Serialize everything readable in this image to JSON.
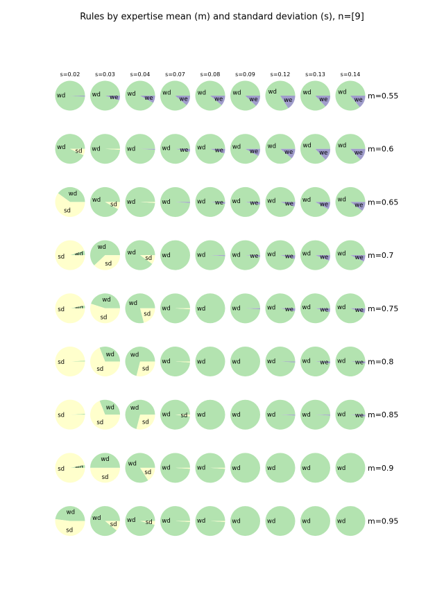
{
  "chart_data": {
    "type": "pie",
    "title": "Rules by expertise mean (m) and standard deviation (s), n=[9]",
    "column_labels": [
      "s=0.02",
      "s=0.03",
      "s=0.04",
      "s=0.07",
      "s=0.08",
      "s=0.09",
      "s=0.12",
      "s=0.13",
      "s=0.14"
    ],
    "row_labels": [
      "m=0.55",
      "m=0.6",
      "m=0.65",
      "m=0.7",
      "m=0.75",
      "m=0.8",
      "m=0.85",
      "m=0.9",
      "m=0.95"
    ],
    "categories": [
      "wd",
      "we",
      "sd"
    ],
    "colors": {
      "wd": "#b3e3b0",
      "we": "#a09dcc",
      "sd": "#ffffcc"
    },
    "grid": [
      [
        {
          "wd": 0.99,
          "we": 0.01,
          "sd": 0
        },
        {
          "wd": 0.95,
          "we": 0.05,
          "sd": 0
        },
        {
          "wd": 0.92,
          "we": 0.08,
          "sd": 0
        },
        {
          "wd": 0.89,
          "we": 0.11,
          "sd": 0
        },
        {
          "wd": 0.89,
          "we": 0.11,
          "sd": 0
        },
        {
          "wd": 0.88,
          "we": 0.12,
          "sd": 0
        },
        {
          "wd": 0.84,
          "we": 0.16,
          "sd": 0
        },
        {
          "wd": 0.87,
          "we": 0.13,
          "sd": 0
        },
        {
          "wd": 0.86,
          "we": 0.14,
          "sd": 0
        }
      ],
      [
        {
          "wd": 0.93,
          "we": 0,
          "sd": 0.07
        },
        {
          "wd": 0.99,
          "we": 0,
          "sd": 0.01
        },
        {
          "wd": 0.99,
          "we": 0.01,
          "sd": 0
        },
        {
          "wd": 0.97,
          "we": 0.03,
          "sd": 0
        },
        {
          "wd": 0.95,
          "we": 0.05,
          "sd": 0
        },
        {
          "wd": 0.92,
          "we": 0.08,
          "sd": 0
        },
        {
          "wd": 0.89,
          "we": 0.11,
          "sd": 0
        },
        {
          "wd": 0.87,
          "we": 0.13,
          "sd": 0
        },
        {
          "wd": 0.87,
          "we": 0.13,
          "sd": 0
        }
      ],
      [
        {
          "wd": 0.4,
          "we": 0,
          "sd": 0.6
        },
        {
          "wd": 0.92,
          "we": 0,
          "sd": 0.08
        },
        {
          "wd": 0.99,
          "we": 0,
          "sd": 0.01
        },
        {
          "wd": 0.99,
          "we": 0.01,
          "sd": 0
        },
        {
          "wd": 0.98,
          "we": 0.02,
          "sd": 0
        },
        {
          "wd": 0.97,
          "we": 0.03,
          "sd": 0
        },
        {
          "wd": 0.95,
          "we": 0.05,
          "sd": 0
        },
        {
          "wd": 0.92,
          "we": 0.08,
          "sd": 0
        },
        {
          "wd": 0.9,
          "we": 0.1,
          "sd": 0
        }
      ],
      [
        {
          "wd": 0.05,
          "we": 0,
          "sd": 0.95
        },
        {
          "wd": 0.62,
          "we": 0,
          "sd": 0.38
        },
        {
          "wd": 0.9,
          "we": 0,
          "sd": 0.1
        },
        {
          "wd": 1.0,
          "we": 0,
          "sd": 0
        },
        {
          "wd": 0.99,
          "we": 0.01,
          "sd": 0
        },
        {
          "wd": 0.98,
          "we": 0.02,
          "sd": 0
        },
        {
          "wd": 0.96,
          "we": 0.04,
          "sd": 0
        },
        {
          "wd": 0.94,
          "we": 0.06,
          "sd": 0
        },
        {
          "wd": 0.93,
          "we": 0.07,
          "sd": 0
        }
      ],
      [
        {
          "wd": 0.03,
          "we": 0,
          "sd": 0.97
        },
        {
          "wd": 0.45,
          "we": 0,
          "sd": 0.55
        },
        {
          "wd": 0.79,
          "we": 0,
          "sd": 0.21
        },
        {
          "wd": 0.99,
          "we": 0,
          "sd": 0.01
        },
        {
          "wd": 1.0,
          "we": 0,
          "sd": 0
        },
        {
          "wd": 0.99,
          "we": 0.01,
          "sd": 0
        },
        {
          "wd": 0.97,
          "we": 0.03,
          "sd": 0
        },
        {
          "wd": 0.96,
          "we": 0.04,
          "sd": 0
        },
        {
          "wd": 0.95,
          "we": 0.05,
          "sd": 0
        }
      ],
      [
        {
          "wd": 0.01,
          "we": 0,
          "sd": 0.99
        },
        {
          "wd": 0.31,
          "we": 0,
          "sd": 0.69
        },
        {
          "wd": 0.71,
          "we": 0,
          "sd": 0.29
        },
        {
          "wd": 0.99,
          "we": 0,
          "sd": 0.01
        },
        {
          "wd": 1.0,
          "we": 0,
          "sd": 0
        },
        {
          "wd": 1.0,
          "we": 0,
          "sd": 0
        },
        {
          "wd": 0.99,
          "we": 0.01,
          "sd": 0
        },
        {
          "wd": 0.98,
          "we": 0.02,
          "sd": 0
        },
        {
          "wd": 0.98,
          "we": 0.02,
          "sd": 0
        }
      ],
      [
        {
          "wd": 0.01,
          "we": 0,
          "sd": 0.99
        },
        {
          "wd": 0.31,
          "we": 0,
          "sd": 0.69
        },
        {
          "wd": 0.71,
          "we": 0,
          "sd": 0.29
        },
        {
          "wd": 0.98,
          "we": 0,
          "sd": 0.02
        },
        {
          "wd": 1.0,
          "we": 0,
          "sd": 0
        },
        {
          "wd": 1.0,
          "we": 0,
          "sd": 0
        },
        {
          "wd": 0.99,
          "we": 0.01,
          "sd": 0
        },
        {
          "wd": 0.99,
          "we": 0.01,
          "sd": 0
        },
        {
          "wd": 0.98,
          "we": 0.02,
          "sd": 0
        }
      ],
      [
        {
          "wd": 0.03,
          "we": 0,
          "sd": 0.97
        },
        {
          "wd": 0.5,
          "we": 0,
          "sd": 0.5
        },
        {
          "wd": 0.84,
          "we": 0,
          "sd": 0.16
        },
        {
          "wd": 0.99,
          "we": 0,
          "sd": 0.01
        },
        {
          "wd": 0.99,
          "we": 0,
          "sd": 0.01
        },
        {
          "wd": 1.0,
          "we": 0,
          "sd": 0
        },
        {
          "wd": 1.0,
          "we": 0,
          "sd": 0
        },
        {
          "wd": 1.0,
          "we": 0,
          "sd": 0
        },
        {
          "wd": 1.0,
          "we": 0,
          "sd": 0
        }
      ],
      [
        {
          "wd": 0.48,
          "we": 0,
          "sd": 0.52
        },
        {
          "wd": 0.89,
          "we": 0,
          "sd": 0.11
        },
        {
          "wd": 0.96,
          "we": 0,
          "sd": 0.04
        },
        {
          "wd": 0.99,
          "we": 0,
          "sd": 0.01
        },
        {
          "wd": 0.99,
          "we": 0,
          "sd": 0.01
        },
        {
          "wd": 1.0,
          "we": 0,
          "sd": 0
        },
        {
          "wd": 1.0,
          "we": 0,
          "sd": 0
        },
        {
          "wd": 1.0,
          "we": 0,
          "sd": 0
        },
        {
          "wd": 1.0,
          "we": 0,
          "sd": 0
        }
      ]
    ]
  }
}
